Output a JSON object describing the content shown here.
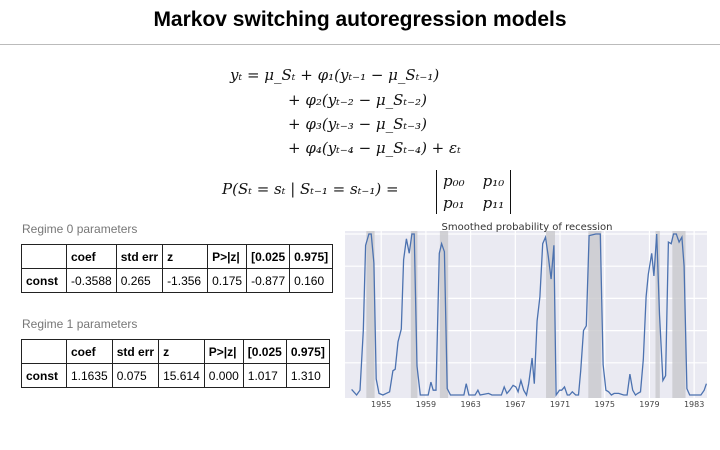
{
  "title": "Markov switching autoregression models",
  "equations": {
    "line1": "yₜ = μ_Sₜ + φ₁(yₜ₋₁ − μ_Sₜ₋₁)",
    "line2": "+ φ₂(yₜ₋₂ − μ_Sₜ₋₂)",
    "line3": "+ φ₃(yₜ₋₃ − μ_Sₜ₋₃)",
    "line4": "+ φ₄(yₜ₋₄ − μ_Sₜ₋₄) + εₜ",
    "transition_lhs": "P(Sₜ = sₜ | Sₜ₋₁ = sₜ₋₁) =",
    "matrix": [
      [
        "p₀₀",
        "p₁₀"
      ],
      [
        "p₀₁",
        "p₁₁"
      ]
    ]
  },
  "tables": [
    {
      "label": "Regime 0 parameters",
      "headers": [
        "",
        "coef",
        "std err",
        "z",
        "P>|z|",
        "[0.025",
        "0.975]"
      ],
      "row": [
        "const",
        "-0.3588",
        "0.265",
        "-1.356",
        "0.175",
        "-0.877",
        "0.160"
      ]
    },
    {
      "label": "Regime 1 parameters",
      "headers": [
        "",
        "coef",
        "std err",
        "z",
        "P>|z|",
        "[0.025",
        "0.975]"
      ],
      "row": [
        "const",
        "1.1635",
        "0.075",
        "15.614",
        "0.000",
        "1.017",
        "1.310"
      ]
    }
  ],
  "chart_data": {
    "type": "line",
    "title": "Smoothed probability of recession",
    "xlim": [
      1951.76,
      1984.15
    ],
    "ylim": [
      0,
      1
    ],
    "xticks": [
      1955,
      1959,
      1963,
      1967,
      1971,
      1975,
      1979,
      1983
    ],
    "grid": true,
    "colors": {
      "line": "#4c72b0",
      "background": "#eaeaf2",
      "shade": "#c8c8cc"
    },
    "recession_shading": [
      [
        1953.67,
        1954.41
      ],
      [
        1957.65,
        1958.24
      ],
      [
        1960.25,
        1960.99
      ],
      [
        1969.75,
        1970.55
      ],
      [
        1973.53,
        1974.7
      ],
      [
        1979.54,
        1979.93
      ],
      [
        1981.05,
        1982.23
      ]
    ],
    "x": [
      1952.35,
      1952.8,
      1953.1,
      1953.4,
      1953.6,
      1953.9,
      1954.1,
      1954.35,
      1954.55,
      1954.8,
      1955.15,
      1955.45,
      1955.75,
      1956.05,
      1956.25,
      1956.5,
      1956.8,
      1957.0,
      1957.25,
      1957.5,
      1957.75,
      1957.95,
      1958.2,
      1958.5,
      1958.85,
      1959.2,
      1959.45,
      1959.65,
      1959.9,
      1960.2,
      1960.4,
      1960.65,
      1960.9,
      1961.2,
      1962.4,
      1962.6,
      1962.85,
      1963.4,
      1963.65,
      1963.85,
      1964.6,
      1964.9,
      1965.75,
      1966.0,
      1966.25,
      1966.5,
      1966.8,
      1967.05,
      1967.25,
      1967.5,
      1967.75,
      1968.0,
      1968.2,
      1968.5,
      1968.7,
      1968.95,
      1969.2,
      1969.45,
      1969.7,
      1969.95,
      1970.2,
      1970.45,
      1970.65,
      1970.95,
      1971.15,
      1971.4,
      1971.65,
      1971.85,
      1972.1,
      1972.4,
      1972.65,
      1972.85,
      1973.1,
      1973.35,
      1973.6,
      1974.2,
      1974.6,
      1974.85,
      1975.1,
      1975.35,
      1975.6,
      1975.85,
      1976.25,
      1976.7,
      1977.0,
      1977.25,
      1977.5,
      1977.75,
      1977.95,
      1978.2,
      1978.45,
      1978.7,
      1978.9,
      1979.2,
      1979.4,
      1979.65,
      1979.9,
      1980.2,
      1980.45,
      1980.7,
      1980.95,
      1981.15,
      1981.4,
      1981.65,
      1981.9,
      1982.1,
      1982.35,
      1982.6,
      1983.6,
      1983.9,
      1984.1
    ],
    "y": [
      0.035,
      0.0,
      0.03,
      0.4,
      0.93,
      1.0,
      1.0,
      0.82,
      0.1,
      0.01,
      0.0,
      0.01,
      0.02,
      0.15,
      0.16,
      0.33,
      0.41,
      0.84,
      0.97,
      0.88,
      1.0,
      1.0,
      0.18,
      0.0,
      0.0,
      0.0,
      0.08,
      0.03,
      0.03,
      0.88,
      0.94,
      0.89,
      0.04,
      0.0,
      0.0,
      0.07,
      0.0,
      0.0,
      0.03,
      0.0,
      0.01,
      0.0,
      0.0,
      0.05,
      0.01,
      0.03,
      0.06,
      0.05,
      0.02,
      0.09,
      0.03,
      0.0,
      0.07,
      0.23,
      0.07,
      0.46,
      0.61,
      0.94,
      0.98,
      0.86,
      0.72,
      0.93,
      0.0,
      0.03,
      0.03,
      0.05,
      0.0,
      0.0,
      0.02,
      0.0,
      0.0,
      0.15,
      0.4,
      0.43,
      0.99,
      1.0,
      1.0,
      0.19,
      0.03,
      0.02,
      0.0,
      0.01,
      0.01,
      0.0,
      0.0,
      0.13,
      0.03,
      0.0,
      0.01,
      0.02,
      0.22,
      0.61,
      0.75,
      0.88,
      0.74,
      1.0,
      0.5,
      0.09,
      0.12,
      0.95,
      0.94,
      1.0,
      1.0,
      0.95,
      0.98,
      0.8,
      0.04,
      0.0,
      0.0,
      0.03,
      0.07
    ]
  }
}
